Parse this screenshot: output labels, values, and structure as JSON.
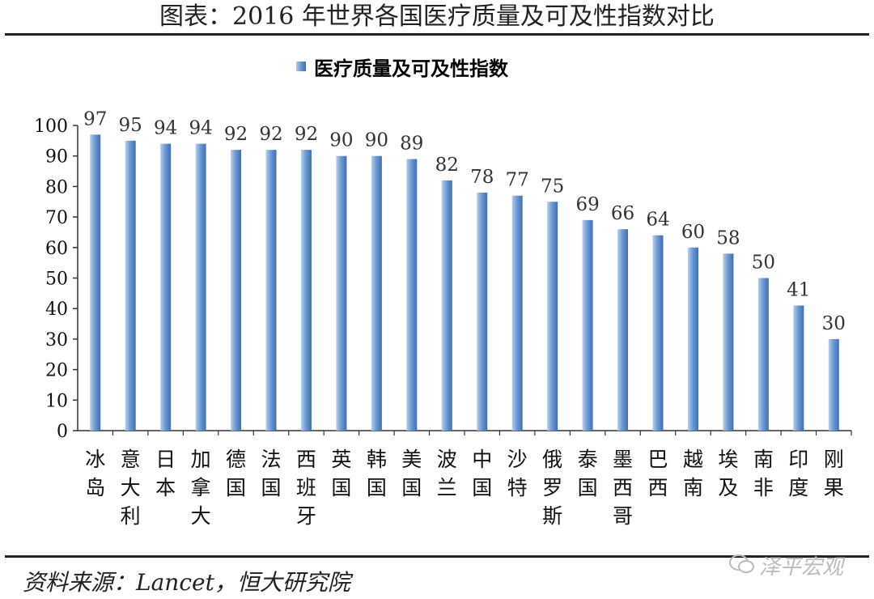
{
  "page": {
    "title": "图表：2016 年世界各国医疗质量及可及性指数对比",
    "source": "资料来源：Lancet，恒大研究院",
    "watermark": "泽平宏观"
  },
  "colors": {
    "bar_light": "#b5cfee",
    "bar_mid": "#6f9ad4",
    "bar_dark": "#3e6fb3",
    "axis": "#333333"
  },
  "chart_data": {
    "type": "bar",
    "title": "",
    "legend": [
      "医疗质量及可及性指数"
    ],
    "legend_position": "top-center",
    "categories": [
      "冰岛",
      "意大利",
      "日本",
      "加拿大",
      "德国",
      "法国",
      "西班牙",
      "英国",
      "韩国",
      "美国",
      "波兰",
      "中国",
      "沙特",
      "俄罗斯",
      "泰国",
      "墨西哥",
      "巴西",
      "越南",
      "埃及",
      "南非",
      "印度",
      "刚果"
    ],
    "series": [
      {
        "name": "医疗质量及可及性指数",
        "values": [
          97,
          95,
          94,
          94,
          92,
          92,
          92,
          90,
          90,
          89,
          82,
          78,
          77,
          75,
          69,
          66,
          64,
          60,
          58,
          50,
          41,
          30
        ]
      }
    ],
    "xlabel": "",
    "ylabel": "",
    "ylim": [
      0,
      100
    ],
    "yticks": [
      0,
      10,
      20,
      30,
      40,
      50,
      60,
      70,
      80,
      90,
      100
    ],
    "grid": false,
    "data_labels": true
  }
}
